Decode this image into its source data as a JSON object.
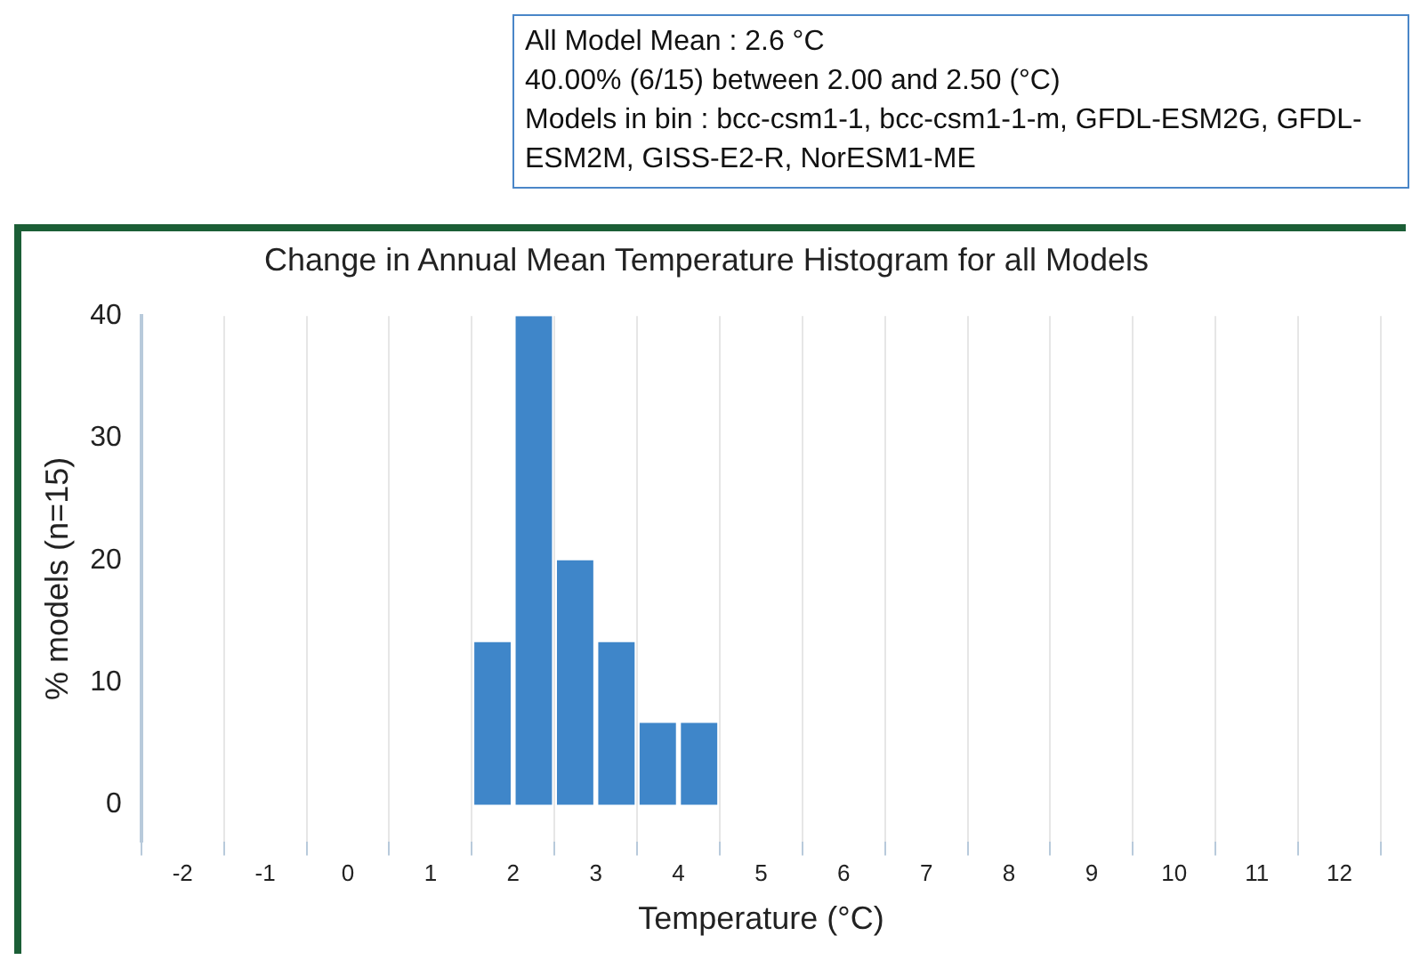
{
  "chart_data": {
    "type": "histogram",
    "title": "Change in Annual Mean Temperature Histogram for all Models",
    "xlabel": "Temperature (°C)",
    "ylabel": "% models (n=15)",
    "bins": [
      -2.5,
      -2,
      -1.5,
      -1,
      -0.5,
      0,
      0.5,
      1,
      1.5,
      2,
      2.5,
      3,
      3.5,
      4,
      4.5,
      5,
      5.5,
      6,
      6.5,
      7,
      7.5,
      8,
      8.5,
      9,
      9.5,
      10,
      10.5,
      11,
      11.5,
      12,
      12.5
    ],
    "values": [
      0,
      0,
      0,
      0,
      0,
      0,
      0,
      0,
      13.3,
      40,
      20,
      13.3,
      6.7,
      6.7,
      0,
      0,
      0,
      0,
      0,
      0,
      0,
      0,
      0,
      0,
      0,
      0,
      0,
      0,
      0,
      0
    ],
    "color": "#3f86c9",
    "xlim": [
      -2.5,
      12.5
    ],
    "xticks": [
      -2,
      -1,
      0,
      1,
      2,
      3,
      4,
      5,
      6,
      7,
      8,
      9,
      10,
      11,
      12
    ],
    "ylim": [
      -3,
      40
    ],
    "yticks": [
      0,
      10,
      20,
      30,
      40
    ],
    "grid": "x",
    "legend": false,
    "annotations": [
      "All Model Mean : 2.6 °C",
      "40.00% (6/15) between 2.00 and 2.50 (°C)",
      "Models in bin : bcc-csm1-1, bcc-csm1-1-m, GFDL-ESM2G, GFDL-ESM2M, GISS-E2-R, NorESM1-ME"
    ]
  }
}
